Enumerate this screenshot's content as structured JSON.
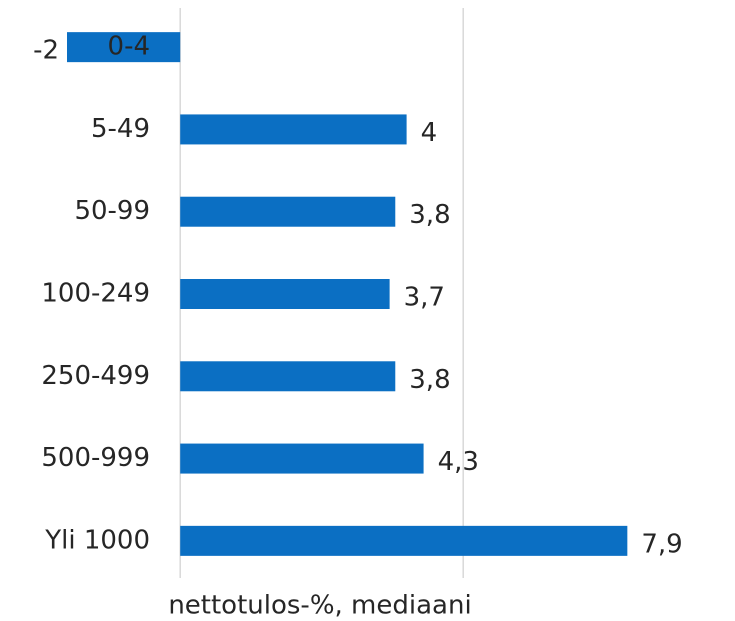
{
  "chart_data": {
    "type": "barh",
    "categories": [
      "0-4",
      "5-49",
      "50-99",
      "100-249",
      "250-499",
      "500-999",
      "Yli 1000"
    ],
    "values": [
      -2,
      4,
      3.8,
      3.7,
      3.8,
      4.3,
      7.9
    ],
    "value_labels": [
      "-2",
      "4",
      "3,8",
      "3,7",
      "3,8",
      "4,3",
      "7,9"
    ],
    "color": "#0b6fc3",
    "xlim": [
      -2,
      8
    ],
    "xticks": [
      0,
      5
    ],
    "grid": true,
    "xlabel": "nettotulos-%, mediaani"
  }
}
